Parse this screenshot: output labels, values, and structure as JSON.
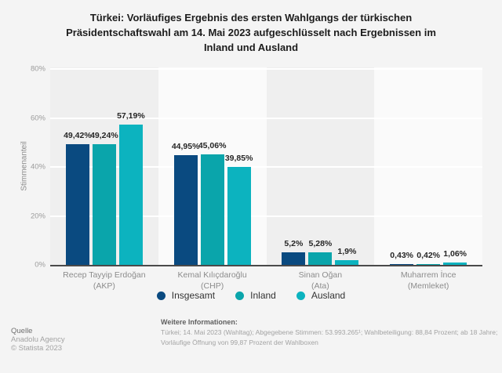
{
  "title_lines": [
    "Türkei: Vorläufiges Ergebnis des ersten Wahlgangs der türkischen",
    "Präsidentschaftswahl am 14. Mai 2023 aufgeschlüsselt nach Ergebnissen im",
    "Inland und Ausland"
  ],
  "chart_data": {
    "type": "bar",
    "title": "Türkei: Vorläufiges Ergebnis des ersten Wahlgangs der türkischen Präsidentschaftswahl am 14. Mai 2023 aufgeschlüsselt nach Ergebnissen im Inland und Ausland",
    "xlabel": "",
    "ylabel": "Stimmenanteil",
    "ylim": [
      0,
      80
    ],
    "yticks": [
      0,
      20,
      40,
      60,
      80
    ],
    "ytick_labels": [
      "0%",
      "20%",
      "40%",
      "60%",
      "80%"
    ],
    "grid": true,
    "legend_position": "bottom",
    "categories": [
      {
        "label": "Recep Tayyip Erdoğan",
        "sub": "(AKP)"
      },
      {
        "label": "Kemal Kılıçdaroğlu",
        "sub": "(CHP)"
      },
      {
        "label": "Sinan Oğan",
        "sub": "(Ata)"
      },
      {
        "label": "Muharrem İnce",
        "sub": "(Memleket)"
      }
    ],
    "series": [
      {
        "name": "Insgesamt",
        "color": "#0a4a80",
        "values": [
          49.42,
          44.95,
          5.2,
          0.43
        ],
        "labels": [
          "49,42%",
          "44,95%",
          "5,2%",
          "0,43%"
        ]
      },
      {
        "name": "Inland",
        "color": "#0aa5ab",
        "values": [
          49.24,
          45.06,
          5.28,
          0.42
        ],
        "labels": [
          "49,24%",
          "45,06%",
          "5,28%",
          "0,42%"
        ]
      },
      {
        "name": "Ausland",
        "color": "#0cb3bf",
        "values": [
          57.19,
          39.85,
          1.9,
          1.06
        ],
        "labels": [
          "57,19%",
          "39,85%",
          "1,9%",
          "1,06%"
        ]
      }
    ],
    "band_colors": [
      "#efefef",
      "#fafafa"
    ]
  },
  "footer": {
    "source_label": "Quelle",
    "source_name": "Anadolu Agency",
    "copyright": "© Statista 2023",
    "info_label": "Weitere Informationen:",
    "info_text": "Türkei; 14. Mai 2023 (Wahltag); Abgegebene Stimmen: 53.993.265¹; Wahlbeteiligung: 88,84 Prozent; ab 18 Jahre; Vorläufige Öffnung von 99,87 Prozent der Wahlboxen"
  }
}
